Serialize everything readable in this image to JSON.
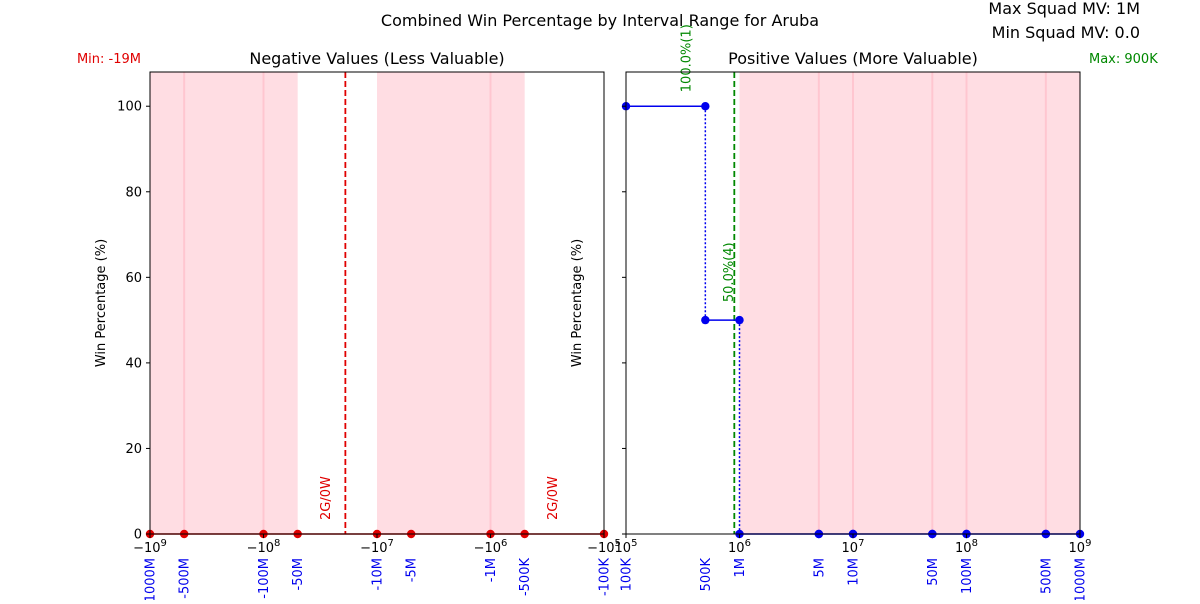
{
  "figure": {
    "title": "Combined Win Percentage by Interval Range for Aruba",
    "info": [
      "Max Squad MV: 1M",
      "Min Squad MV: 0.0"
    ]
  },
  "colors": {
    "shade": "#ffdde3",
    "shade_line": "#ffc6d0",
    "neg": "#e00000",
    "pos": "#0000ee",
    "pos_annot": "#008800"
  },
  "chart_data": [
    {
      "type": "line",
      "title": "Negative Values (Less Valuable)",
      "ylabel": "Win Percentage (%)",
      "xscale": "symlog",
      "xlim": [
        -1000000000,
        -100000
      ],
      "ylim": [
        0,
        108
      ],
      "grid": false,
      "y_ticks": [
        0,
        20,
        40,
        60,
        80,
        100
      ],
      "x_ticks": [
        {
          "value": -1000000000,
          "label": "−10^9"
        },
        {
          "value": -100000000,
          "label": "−10^8"
        },
        {
          "value": -10000000,
          "label": "−10^7"
        },
        {
          "value": -1000000,
          "label": "−10^6"
        },
        {
          "value": -100000,
          "label": "−10^5"
        }
      ],
      "interval_labels": [
        {
          "value": -1000000000,
          "label": "-1000M"
        },
        {
          "value": -500000000,
          "label": "-500M"
        },
        {
          "value": -100000000,
          "label": "-100M"
        },
        {
          "value": -50000000,
          "label": "-50M"
        },
        {
          "value": -10000000,
          "label": "-10M"
        },
        {
          "value": -5000000,
          "label": "-5M"
        },
        {
          "value": -1000000,
          "label": "-1M"
        },
        {
          "value": -500000,
          "label": "-500K"
        },
        {
          "value": -100000,
          "label": "-100K"
        }
      ],
      "shaded_ranges": [
        [
          -1000000000,
          -50000000
        ],
        [
          -10000000,
          -500000
        ]
      ],
      "shade_lines": [
        -500000000,
        -100000000,
        -1000000
      ],
      "series": [
        {
          "x": [
            -1000000000,
            -500000000,
            -100000000,
            -50000000,
            -10000000,
            -5000000,
            -1000000,
            -500000,
            -100000
          ],
          "y": [
            0,
            0,
            0,
            0,
            0,
            0,
            0,
            0,
            0
          ]
        }
      ],
      "vline": {
        "value": -19000000,
        "label": "Min: -19M"
      },
      "annotations": [
        {
          "x": -26000000,
          "label": "2G/0W"
        },
        {
          "x": -260000,
          "label": "2G/0W"
        }
      ]
    },
    {
      "type": "line",
      "title": "Positive Values (More Valuable)",
      "ylabel": "Win Percentage (%)",
      "xscale": "symlog",
      "xlim": [
        100000,
        1000000000
      ],
      "ylim": [
        0,
        108
      ],
      "grid": false,
      "y_ticks": [
        0,
        20,
        40,
        60,
        80,
        100
      ],
      "x_ticks": [
        {
          "value": 100000,
          "label": "10^5"
        },
        {
          "value": 1000000,
          "label": "10^6"
        },
        {
          "value": 10000000,
          "label": "10^7"
        },
        {
          "value": 100000000,
          "label": "10^8"
        },
        {
          "value": 1000000000,
          "label": "10^9"
        }
      ],
      "interval_labels": [
        {
          "value": 100000,
          "label": "100K"
        },
        {
          "value": 500000,
          "label": "500K"
        },
        {
          "value": 1000000,
          "label": "1M"
        },
        {
          "value": 5000000,
          "label": "5M"
        },
        {
          "value": 10000000,
          "label": "10M"
        },
        {
          "value": 50000000,
          "label": "50M"
        },
        {
          "value": 100000000,
          "label": "100M"
        },
        {
          "value": 500000000,
          "label": "500M"
        },
        {
          "value": 1000000000,
          "label": "1000M"
        }
      ],
      "shaded_ranges": [
        [
          1000000,
          1000000000
        ]
      ],
      "shade_lines": [
        5000000,
        10000000,
        50000000,
        100000000,
        500000000
      ],
      "steps": [
        {
          "x0": 100000,
          "x1": 500000,
          "y": 100
        },
        {
          "x0": 500000,
          "x1": 1000000,
          "y": 50
        },
        {
          "x0": 1000000,
          "x1": 5000000,
          "y": 0
        },
        {
          "x0": 5000000,
          "x1": 10000000,
          "y": 0
        },
        {
          "x0": 10000000,
          "x1": 50000000,
          "y": 0
        },
        {
          "x0": 50000000,
          "x1": 100000000,
          "y": 0
        },
        {
          "x0": 100000000,
          "x1": 500000000,
          "y": 0
        },
        {
          "x0": 500000000,
          "x1": 1000000000,
          "y": 0
        }
      ],
      "vline": {
        "value": 900000,
        "label": "Max: 900K"
      },
      "annotations": [
        {
          "x": 370000,
          "label": "100.0%(1)"
        },
        {
          "x": 880000,
          "label": "50.0%(4)"
        }
      ]
    }
  ]
}
